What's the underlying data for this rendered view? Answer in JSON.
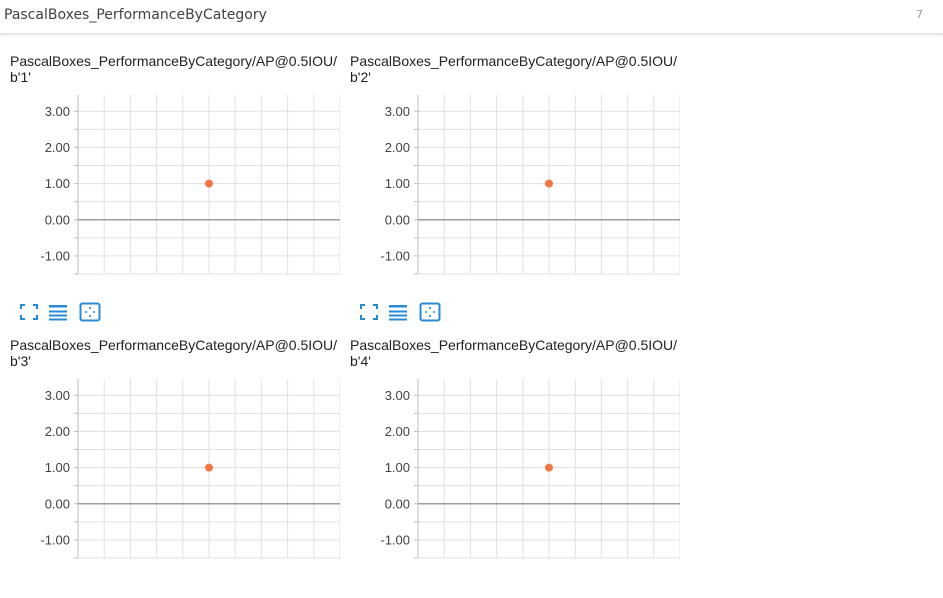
{
  "header": {
    "title": "PascalBoxes_PerformanceByCategory",
    "count": "7"
  },
  "toolbar": {
    "icons": [
      "fullscreen-icon",
      "data-table-icon",
      "fit-domain-icon"
    ]
  },
  "colors": {
    "point": "#f57542",
    "accent": "#288ad6",
    "grid": "#e0e0e0",
    "zero_line": "#9e9e9e"
  },
  "chart_data": [
    {
      "type": "scatter",
      "title": "PascalBoxes_PerformanceByCategory/AP@0.5IOU/b'1'",
      "y_ticks": [
        "3.00",
        "2.00",
        "1.00",
        "0.00",
        "-1.00"
      ],
      "ylim": [
        -1.5,
        3.45
      ],
      "xlim": [
        0,
        1
      ],
      "points": [
        {
          "x": 0.5,
          "y": 1.0
        }
      ],
      "grid": true
    },
    {
      "type": "scatter",
      "title": "PascalBoxes_PerformanceByCategory/AP@0.5IOU/b'2'",
      "y_ticks": [
        "3.00",
        "2.00",
        "1.00",
        "0.00",
        "-1.00"
      ],
      "ylim": [
        -1.5,
        3.45
      ],
      "xlim": [
        0,
        1
      ],
      "points": [
        {
          "x": 0.5,
          "y": 1.0
        }
      ],
      "grid": true
    },
    {
      "type": "scatter",
      "title": "PascalBoxes_PerformanceByCategory/AP@0.5IOU/b'3'",
      "y_ticks": [
        "3.00",
        "2.00",
        "1.00",
        "0.00",
        "-1.00"
      ],
      "ylim": [
        -1.5,
        3.45
      ],
      "xlim": [
        0,
        1
      ],
      "points": [
        {
          "x": 0.5,
          "y": 1.0
        }
      ],
      "grid": true
    },
    {
      "type": "scatter",
      "title": "PascalBoxes_PerformanceByCategory/AP@0.5IOU/b'4'",
      "y_ticks": [
        "3.00",
        "2.00",
        "1.00",
        "0.00",
        "-1.00"
      ],
      "ylim": [
        -1.5,
        3.45
      ],
      "xlim": [
        0,
        1
      ],
      "points": [
        {
          "x": 0.5,
          "y": 1.0
        }
      ],
      "grid": true
    }
  ]
}
